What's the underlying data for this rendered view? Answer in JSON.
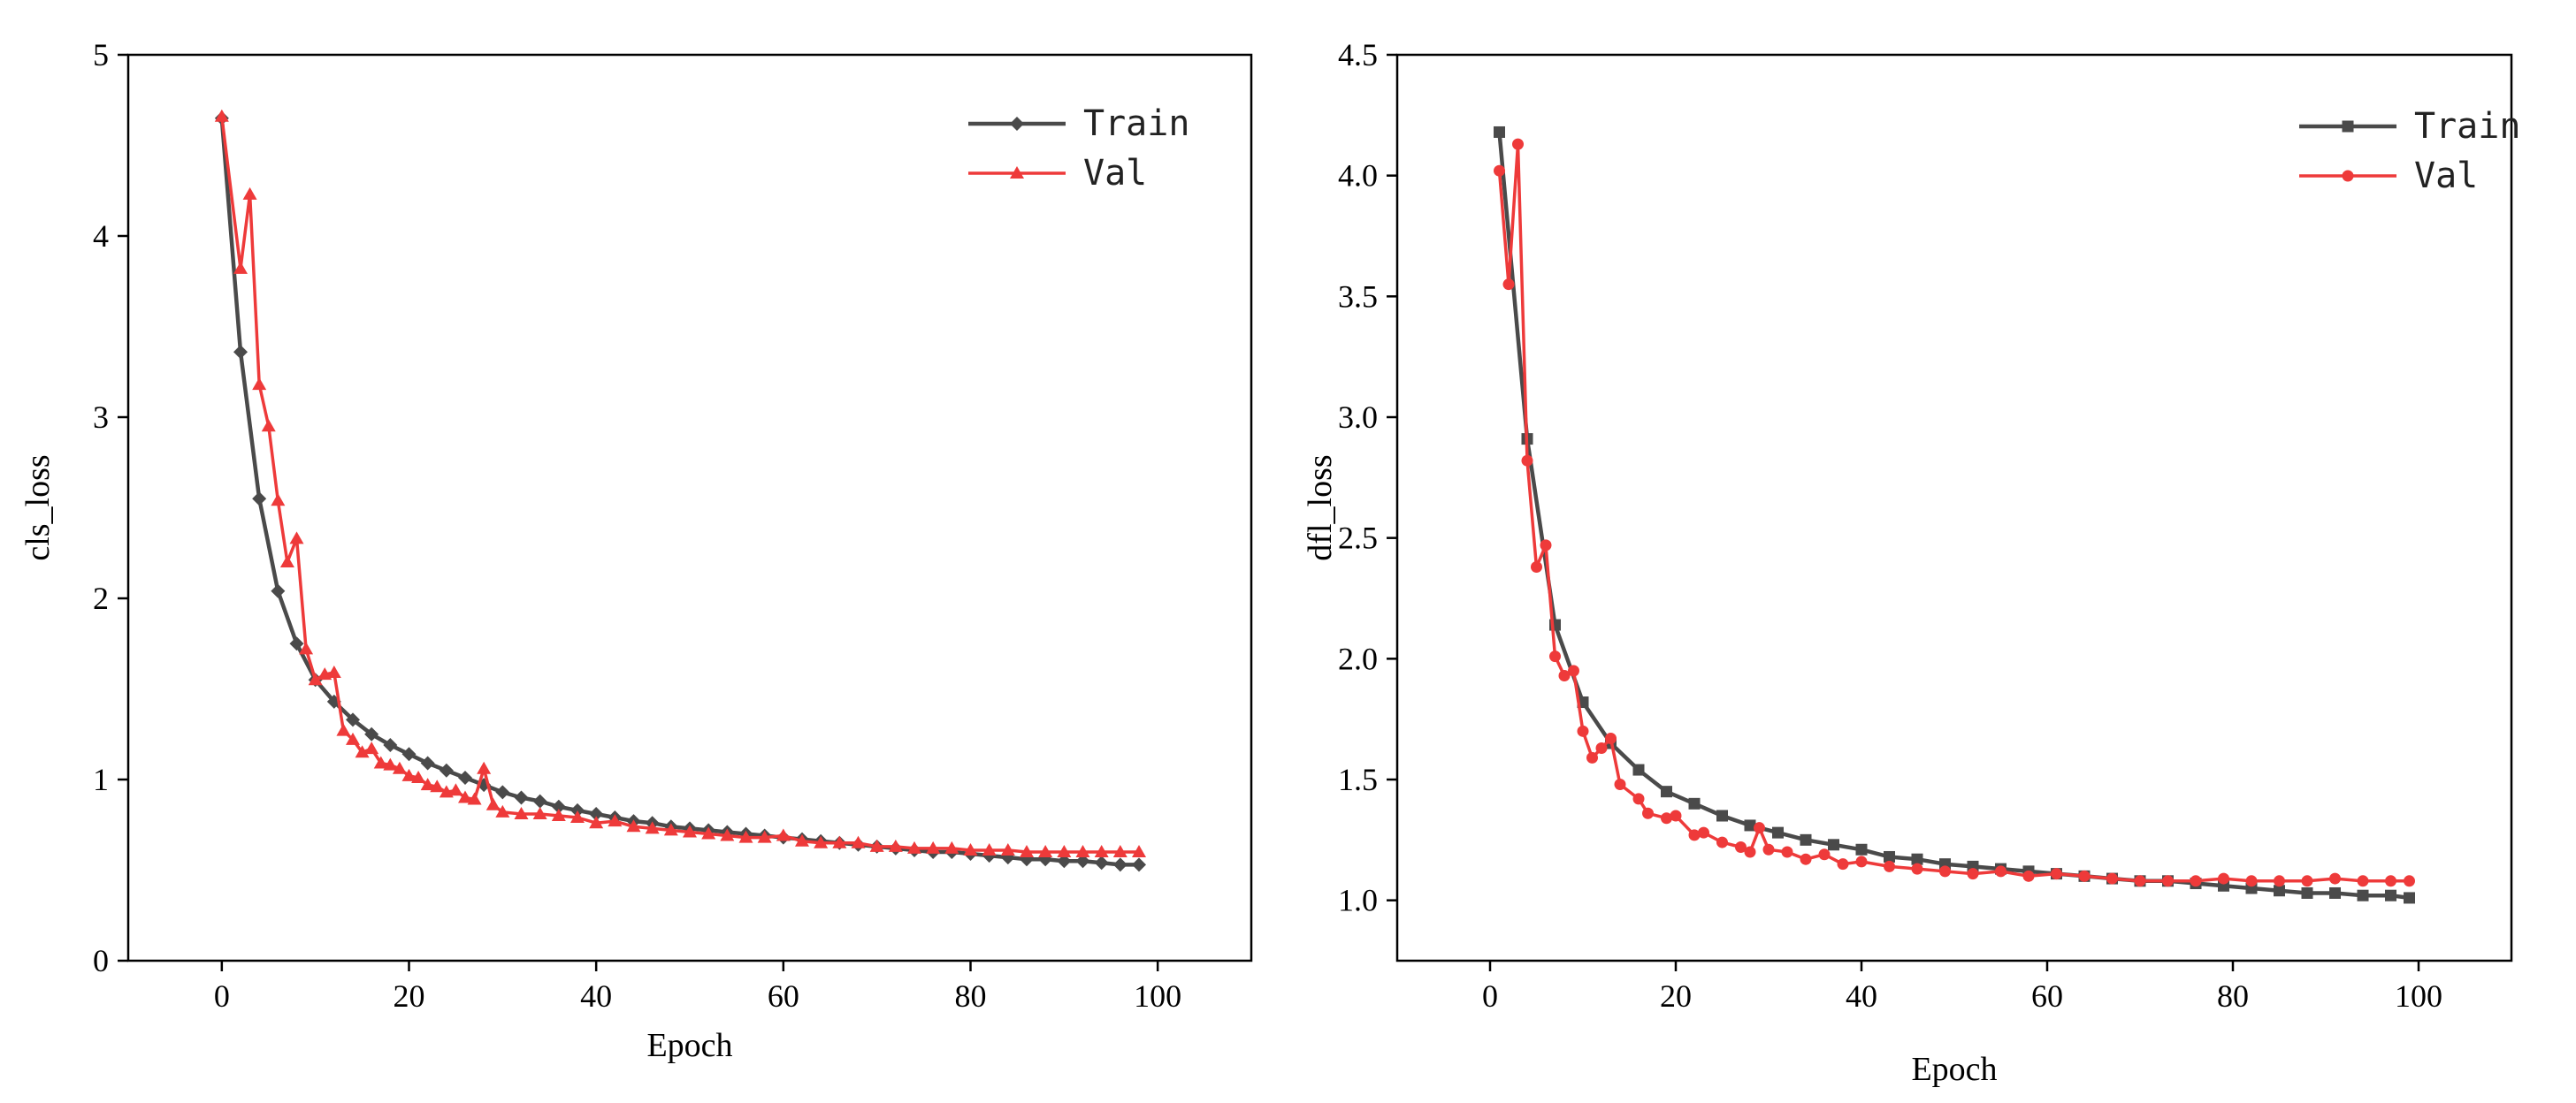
{
  "chart_data": [
    {
      "type": "line",
      "title": "",
      "xlabel": "Epoch",
      "ylabel": "cls_loss",
      "xlim": [
        -10,
        110
      ],
      "ylim": [
        0,
        5
      ],
      "xticks": [
        0,
        20,
        40,
        60,
        80,
        100
      ],
      "yticks": [
        0,
        1,
        2,
        3,
        4,
        5
      ],
      "x_tick_labels": [
        "0",
        "20",
        "40",
        "60",
        "80",
        "100"
      ],
      "y_tick_labels": [
        "0",
        "1",
        "2",
        "3",
        "4",
        "5"
      ],
      "legend_position": "top-right",
      "series": [
        {
          "name": "Train",
          "color": "#4a4a4a",
          "marker": "diamond",
          "x": [
            0,
            2,
            4,
            6,
            8,
            10,
            12,
            14,
            16,
            18,
            20,
            22,
            24,
            26,
            28,
            30,
            32,
            34,
            36,
            38,
            40,
            42,
            44,
            46,
            48,
            50,
            52,
            54,
            56,
            58,
            60,
            62,
            64,
            66,
            68,
            70,
            72,
            74,
            76,
            78,
            80,
            82,
            84,
            86,
            88,
            90,
            92,
            94,
            96,
            98
          ],
          "values": [
            4.65,
            3.36,
            2.55,
            2.04,
            1.75,
            1.55,
            1.43,
            1.33,
            1.25,
            1.19,
            1.14,
            1.09,
            1.05,
            1.01,
            0.97,
            0.93,
            0.9,
            0.88,
            0.85,
            0.83,
            0.81,
            0.79,
            0.77,
            0.76,
            0.74,
            0.73,
            0.72,
            0.71,
            0.7,
            0.69,
            0.68,
            0.67,
            0.66,
            0.65,
            0.64,
            0.63,
            0.62,
            0.61,
            0.6,
            0.6,
            0.59,
            0.58,
            0.57,
            0.56,
            0.56,
            0.55,
            0.55,
            0.54,
            0.53,
            0.53
          ]
        },
        {
          "name": "Val",
          "color": "#ee3a3a",
          "marker": "triangle",
          "x": [
            0,
            2,
            3,
            4,
            5,
            6,
            7,
            8,
            9,
            10,
            11,
            12,
            13,
            14,
            15,
            16,
            17,
            18,
            19,
            20,
            21,
            22,
            23,
            24,
            25,
            26,
            27,
            28,
            29,
            30,
            32,
            34,
            36,
            38,
            40,
            42,
            44,
            46,
            48,
            50,
            52,
            54,
            56,
            58,
            60,
            62,
            64,
            66,
            68,
            70,
            72,
            74,
            76,
            78,
            80,
            82,
            84,
            86,
            88,
            90,
            92,
            94,
            96,
            98
          ],
          "values": [
            4.66,
            3.82,
            4.23,
            3.18,
            2.95,
            2.54,
            2.2,
            2.33,
            1.72,
            1.55,
            1.58,
            1.59,
            1.27,
            1.22,
            1.15,
            1.17,
            1.09,
            1.08,
            1.06,
            1.02,
            1.01,
            0.97,
            0.96,
            0.93,
            0.94,
            0.9,
            0.89,
            1.06,
            0.86,
            0.82,
            0.81,
            0.81,
            0.8,
            0.79,
            0.76,
            0.77,
            0.74,
            0.73,
            0.72,
            0.71,
            0.7,
            0.69,
            0.68,
            0.68,
            0.69,
            0.66,
            0.65,
            0.65,
            0.65,
            0.63,
            0.63,
            0.62,
            0.62,
            0.62,
            0.61,
            0.61,
            0.61,
            0.6,
            0.6,
            0.6,
            0.6,
            0.6,
            0.6,
            0.6
          ]
        }
      ]
    },
    {
      "type": "line",
      "title": "",
      "xlabel": "Epoch",
      "ylabel": "dfl_loss",
      "xlim": [
        -10,
        110
      ],
      "ylim": [
        0.75,
        4.5
      ],
      "xticks": [
        0,
        20,
        40,
        60,
        80,
        100
      ],
      "yticks": [
        1.0,
        1.5,
        2.0,
        2.5,
        3.0,
        3.5,
        4.0,
        4.5
      ],
      "x_tick_labels": [
        "0",
        "20",
        "40",
        "60",
        "80",
        "100"
      ],
      "y_tick_labels": [
        "1.0",
        "1.5",
        "2.0",
        "2.5",
        "3.0",
        "3.5",
        "4.0",
        "4.5"
      ],
      "legend_position": "top-right",
      "series": [
        {
          "name": "Train",
          "color": "#4a4a4a",
          "marker": "square",
          "x": [
            1,
            4,
            7,
            10,
            13,
            16,
            19,
            22,
            25,
            28,
            31,
            34,
            37,
            40,
            43,
            46,
            49,
            52,
            55,
            58,
            61,
            64,
            67,
            70,
            73,
            76,
            79,
            82,
            85,
            88,
            91,
            94,
            97,
            99
          ],
          "values": [
            4.18,
            2.91,
            2.14,
            1.82,
            1.65,
            1.54,
            1.45,
            1.4,
            1.35,
            1.31,
            1.28,
            1.25,
            1.23,
            1.21,
            1.18,
            1.17,
            1.15,
            1.14,
            1.13,
            1.12,
            1.11,
            1.1,
            1.09,
            1.08,
            1.08,
            1.07,
            1.06,
            1.05,
            1.04,
            1.03,
            1.03,
            1.02,
            1.02,
            1.01
          ]
        },
        {
          "name": "Val",
          "color": "#ee3a3a",
          "marker": "circle",
          "x": [
            1,
            2,
            3,
            4,
            5,
            6,
            7,
            8,
            9,
            10,
            11,
            12,
            13,
            14,
            16,
            17,
            19,
            20,
            22,
            23,
            25,
            27,
            28,
            29,
            30,
            32,
            34,
            36,
            38,
            40,
            43,
            46,
            49,
            52,
            55,
            58,
            61,
            64,
            67,
            70,
            73,
            76,
            79,
            82,
            85,
            88,
            91,
            94,
            97,
            99
          ],
          "values": [
            4.02,
            3.55,
            4.13,
            2.82,
            2.38,
            2.47,
            2.01,
            1.93,
            1.95,
            1.7,
            1.59,
            1.63,
            1.67,
            1.48,
            1.42,
            1.36,
            1.34,
            1.35,
            1.27,
            1.28,
            1.24,
            1.22,
            1.2,
            1.3,
            1.21,
            1.2,
            1.17,
            1.19,
            1.15,
            1.16,
            1.14,
            1.13,
            1.12,
            1.11,
            1.12,
            1.1,
            1.11,
            1.1,
            1.09,
            1.08,
            1.08,
            1.08,
            1.09,
            1.08,
            1.08,
            1.08,
            1.09,
            1.08,
            1.08,
            1.08
          ]
        }
      ]
    }
  ]
}
